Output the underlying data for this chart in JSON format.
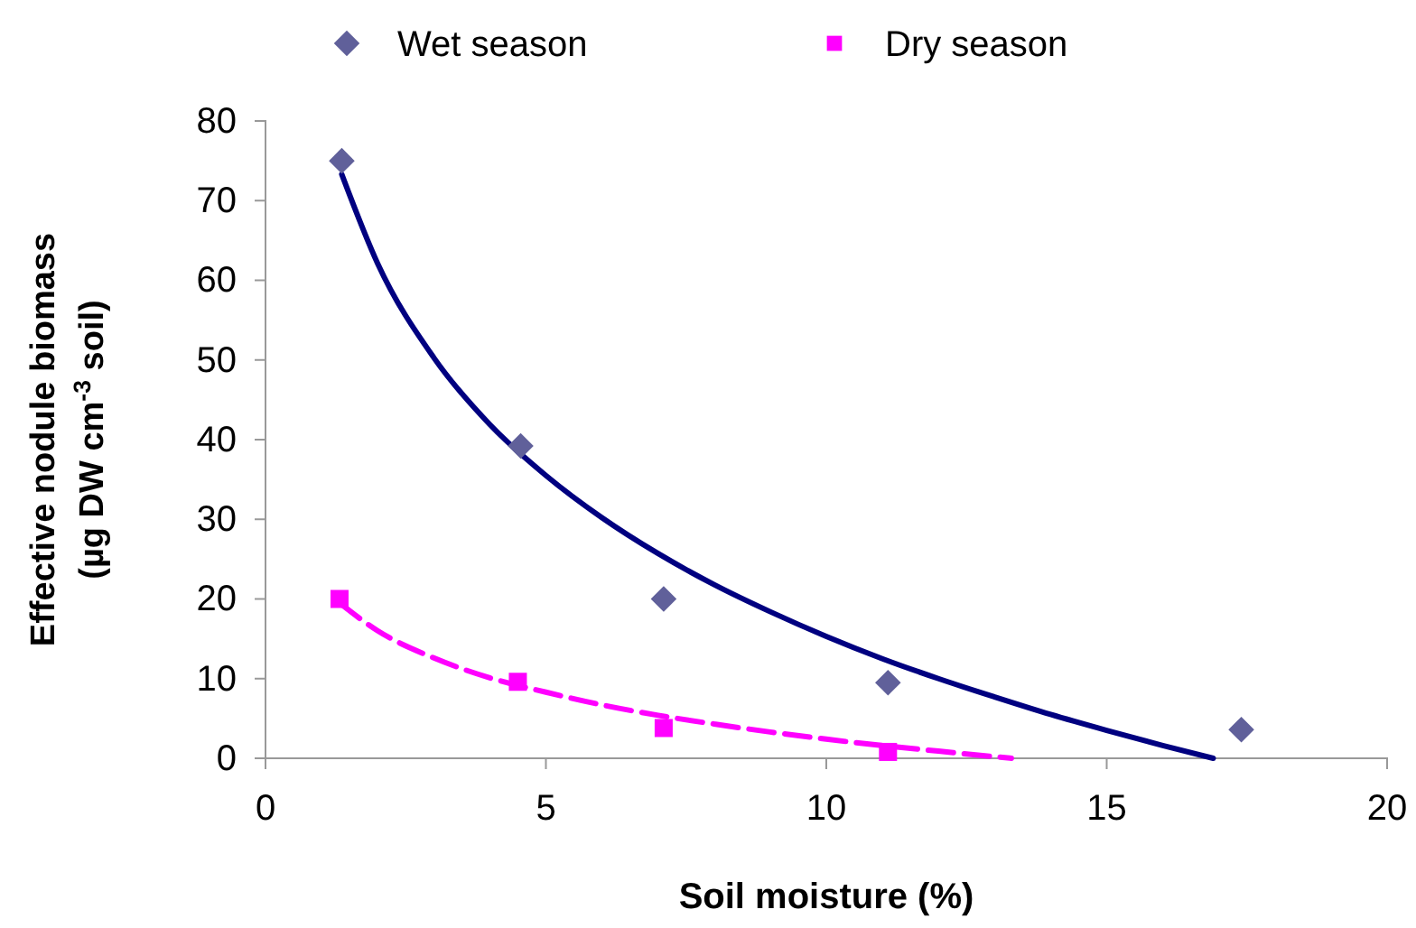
{
  "chart_data": {
    "type": "scatter",
    "xlabel": "Soil moisture (%)",
    "ylabel": "Effective nodule biomass\n(µg DW cm$^{-3}$ soil)",
    "xlim": [
      0,
      20
    ],
    "xticks": [
      0,
      5,
      10,
      15,
      20
    ],
    "ylim": [
      0,
      80
    ],
    "yticks": [
      0,
      10,
      20,
      30,
      40,
      50,
      60,
      70,
      80
    ],
    "grid": false,
    "legend": "top",
    "series": [
      {
        "name": "Wet season",
        "marker": "diamond",
        "color": "#60609a",
        "x": [
          1.36,
          4.55,
          7.1,
          11.1,
          17.4
        ],
        "values": [
          75,
          39.2,
          20,
          9.5,
          3.6
        ]
      },
      {
        "name": "Dry season",
        "marker": "square",
        "color": "#ff00ff",
        "x": [
          1.32,
          4.5,
          7.1,
          11.1
        ],
        "values": [
          20,
          9.6,
          3.8,
          0.8
        ]
      },
      {
        "type": "line",
        "line_style": "solid",
        "color": "#000080",
        "x": [
          1.36,
          2,
          3,
          4,
          5,
          6,
          7,
          8,
          9,
          10,
          11,
          12,
          13,
          14,
          15,
          16,
          16.9
        ],
        "values": [
          73.3,
          62.1,
          50.3,
          41.9,
          35.5,
          30.2,
          25.7,
          21.8,
          18.4,
          15.3,
          12.5,
          10,
          7.7,
          5.5,
          3.5,
          1.6,
          0
        ]
      },
      {
        "type": "line",
        "line_style": "dashed",
        "color": "#ff00ff",
        "x": [
          1.32,
          2,
          3,
          4,
          5,
          6,
          7,
          8,
          9,
          10,
          11,
          12,
          13,
          13.3
        ],
        "values": [
          19.5,
          16,
          12.6,
          10.1,
          8.3,
          6.7,
          5.4,
          4.3,
          3.3,
          2.4,
          1.6,
          0.9,
          0.2,
          0
        ]
      }
    ]
  }
}
